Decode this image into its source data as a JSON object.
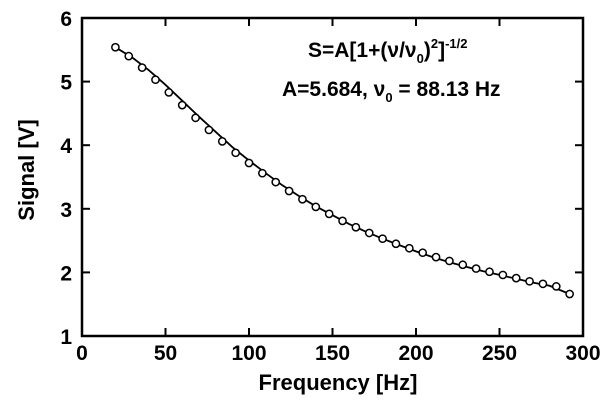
{
  "chart_data": {
    "type": "scatter",
    "xlabel": "Frequency [Hz]",
    "ylabel": "Signal [V]",
    "xlim": [
      0,
      300
    ],
    "ylim": [
      1,
      6
    ],
    "xticks": [
      0,
      50,
      100,
      150,
      200,
      250,
      300
    ],
    "yticks": [
      1,
      2,
      3,
      4,
      5,
      6
    ],
    "grid": false,
    "annotation": {
      "formula": {
        "prefix": "S=A[1+(",
        "nu": "ν",
        "slash": "/",
        "nu2": "ν",
        "sub0": "0",
        "close": ")",
        "sup2": "2",
        "bracket": "]",
        "sup_exp": "-1/2"
      },
      "params": {
        "a_text": "A=5.684, ",
        "nu": "ν",
        "sub0": "0",
        "value_text": " = 88.13 Hz"
      }
    },
    "fit": {
      "A": 5.684,
      "nu0": 88.13
    },
    "series": [
      {
        "style": "markers",
        "x": [
          20,
          28,
          36,
          44,
          52,
          60,
          68,
          76,
          84,
          92,
          100,
          108,
          116,
          124,
          132,
          140,
          148,
          156,
          164,
          172,
          180,
          188,
          196,
          204,
          212,
          220,
          228,
          236,
          244,
          252,
          260,
          268,
          276,
          284,
          292
        ],
        "y": [
          5.54,
          5.4,
          5.22,
          5.03,
          4.83,
          4.63,
          4.43,
          4.24,
          4.06,
          3.88,
          3.72,
          3.56,
          3.42,
          3.28,
          3.15,
          3.03,
          2.92,
          2.81,
          2.71,
          2.62,
          2.53,
          2.45,
          2.38,
          2.31,
          2.24,
          2.18,
          2.12,
          2.06,
          2.01,
          1.96,
          1.91,
          1.86,
          1.82,
          1.78,
          1.66
        ]
      },
      {
        "style": "line",
        "x": [
          20,
          30,
          40,
          50,
          60,
          70,
          80,
          90,
          100,
          110,
          120,
          130,
          140,
          150,
          160,
          170,
          180,
          190,
          200,
          210,
          220,
          230,
          240,
          250,
          260,
          270,
          280,
          292
        ],
        "y": [
          5.54,
          5.38,
          5.18,
          4.95,
          4.7,
          4.45,
          4.21,
          3.97,
          3.76,
          3.56,
          3.37,
          3.2,
          3.04,
          2.9,
          2.76,
          2.64,
          2.53,
          2.43,
          2.33,
          2.24,
          2.16,
          2.09,
          2.02,
          1.96,
          1.9,
          1.84,
          1.79,
          1.66
        ]
      }
    ]
  }
}
